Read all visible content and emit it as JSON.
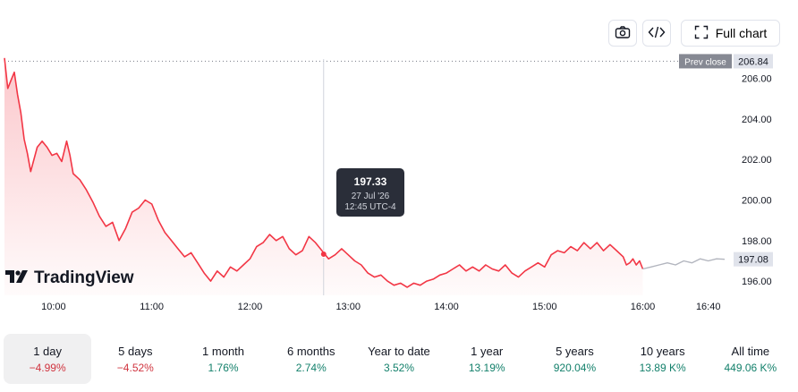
{
  "toolbar": {
    "camera_icon": "camera-icon",
    "embed_icon": "code-icon",
    "full_chart_label": "Full chart"
  },
  "logo_text": "TradingView",
  "tooltip": {
    "value": "197.33",
    "date": "27 Jul '26",
    "time": "12:45 UTC-4"
  },
  "colors": {
    "line": "#f23645",
    "line_after": "#b2b5be",
    "fill": "#f23645",
    "pos": "#13806b",
    "neg": "#d0343f"
  },
  "periods": [
    {
      "label": "1 day",
      "change": "−4.99%",
      "dir": "neg",
      "active": true
    },
    {
      "label": "5 days",
      "change": "−4.52%",
      "dir": "neg",
      "active": false
    },
    {
      "label": "1 month",
      "change": "1.76%",
      "dir": "pos",
      "active": false
    },
    {
      "label": "6 months",
      "change": "2.74%",
      "dir": "pos",
      "active": false
    },
    {
      "label": "Year to date",
      "change": "3.52%",
      "dir": "pos",
      "active": false
    },
    {
      "label": "1 year",
      "change": "13.19%",
      "dir": "pos",
      "active": false
    },
    {
      "label": "5 years",
      "change": "920.04%",
      "dir": "pos",
      "active": false
    },
    {
      "label": "10 years",
      "change": "13.89 K%",
      "dir": "pos",
      "active": false
    },
    {
      "label": "All time",
      "change": "449.06 K%",
      "dir": "pos",
      "active": false
    }
  ],
  "chart_data": {
    "type": "line",
    "xlim": [
      "09:30",
      "16:50"
    ],
    "ylim": [
      195.3,
      207.3
    ],
    "x_ticks": [
      "10:00",
      "11:00",
      "12:00",
      "13:00",
      "14:00",
      "15:00",
      "16:00",
      "16:40"
    ],
    "y_ticks": [
      "196.00",
      "198.00",
      "200.00",
      "202.00",
      "204.00",
      "206.00"
    ],
    "prev_close": {
      "label": "Prev close",
      "value": 206.84,
      "text": "206.84"
    },
    "last_price": {
      "value": 197.08,
      "text": "197.08"
    },
    "crosshair": {
      "x": "12:45",
      "y": 197.33
    },
    "series": [
      {
        "role": "session",
        "points": [
          [
            "09:30",
            207.0
          ],
          [
            "09:32",
            205.5
          ],
          [
            "09:34",
            205.9
          ],
          [
            "09:36",
            206.3
          ],
          [
            "09:38",
            205.2
          ],
          [
            "09:40",
            204.3
          ],
          [
            "09:42",
            203.0
          ],
          [
            "09:44",
            202.3
          ],
          [
            "09:46",
            201.4
          ],
          [
            "09:50",
            202.6
          ],
          [
            "09:53",
            202.9
          ],
          [
            "09:56",
            202.6
          ],
          [
            "09:59",
            202.2
          ],
          [
            "10:02",
            202.3
          ],
          [
            "10:05",
            201.9
          ],
          [
            "10:08",
            202.9
          ],
          [
            "10:10",
            202.2
          ],
          [
            "10:12",
            201.3
          ],
          [
            "10:16",
            201.0
          ],
          [
            "10:20",
            200.5
          ],
          [
            "10:24",
            199.9
          ],
          [
            "10:28",
            199.2
          ],
          [
            "10:32",
            198.7
          ],
          [
            "10:36",
            198.9
          ],
          [
            "10:40",
            198.0
          ],
          [
            "10:44",
            198.6
          ],
          [
            "10:48",
            199.4
          ],
          [
            "10:52",
            199.6
          ],
          [
            "10:56",
            200.0
          ],
          [
            "11:00",
            199.8
          ],
          [
            "11:04",
            199.0
          ],
          [
            "11:08",
            198.4
          ],
          [
            "11:12",
            198.0
          ],
          [
            "11:16",
            197.6
          ],
          [
            "11:20",
            197.2
          ],
          [
            "11:24",
            197.4
          ],
          [
            "11:28",
            196.9
          ],
          [
            "11:32",
            196.4
          ],
          [
            "11:36",
            196.0
          ],
          [
            "11:40",
            196.5
          ],
          [
            "11:44",
            196.2
          ],
          [
            "11:48",
            196.7
          ],
          [
            "11:52",
            196.5
          ],
          [
            "11:56",
            196.8
          ],
          [
            "12:00",
            197.1
          ],
          [
            "12:04",
            197.7
          ],
          [
            "12:08",
            197.9
          ],
          [
            "12:12",
            198.3
          ],
          [
            "12:16",
            198.0
          ],
          [
            "12:20",
            198.2
          ],
          [
            "12:24",
            197.6
          ],
          [
            "12:28",
            197.3
          ],
          [
            "12:32",
            197.5
          ],
          [
            "12:36",
            198.2
          ],
          [
            "12:40",
            197.9
          ],
          [
            "12:44",
            197.5
          ],
          [
            "12:48",
            197.1
          ],
          [
            "12:52",
            197.3
          ],
          [
            "12:56",
            197.6
          ],
          [
            "13:00",
            197.3
          ],
          [
            "13:04",
            197.0
          ],
          [
            "13:08",
            196.8
          ],
          [
            "13:12",
            196.4
          ],
          [
            "13:16",
            196.2
          ],
          [
            "13:20",
            196.3
          ],
          [
            "13:24",
            196.0
          ],
          [
            "13:28",
            195.8
          ],
          [
            "13:32",
            195.9
          ],
          [
            "13:36",
            195.7
          ],
          [
            "13:40",
            195.9
          ],
          [
            "13:44",
            195.8
          ],
          [
            "13:48",
            196.0
          ],
          [
            "13:52",
            196.1
          ],
          [
            "13:56",
            196.3
          ],
          [
            "14:00",
            196.4
          ],
          [
            "14:04",
            196.6
          ],
          [
            "14:08",
            196.8
          ],
          [
            "14:12",
            196.5
          ],
          [
            "14:16",
            196.7
          ],
          [
            "14:20",
            196.5
          ],
          [
            "14:24",
            196.8
          ],
          [
            "14:28",
            196.6
          ],
          [
            "14:32",
            196.5
          ],
          [
            "14:36",
            196.8
          ],
          [
            "14:40",
            196.4
          ],
          [
            "14:44",
            196.2
          ],
          [
            "14:48",
            196.5
          ],
          [
            "14:52",
            196.7
          ],
          [
            "14:56",
            196.9
          ],
          [
            "15:00",
            196.7
          ],
          [
            "15:04",
            197.3
          ],
          [
            "15:08",
            197.5
          ],
          [
            "15:12",
            197.4
          ],
          [
            "15:16",
            197.7
          ],
          [
            "15:20",
            197.5
          ],
          [
            "15:24",
            197.9
          ],
          [
            "15:28",
            197.6
          ],
          [
            "15:32",
            197.9
          ],
          [
            "15:36",
            197.5
          ],
          [
            "15:40",
            197.8
          ],
          [
            "15:44",
            197.5
          ],
          [
            "15:48",
            197.2
          ],
          [
            "15:50",
            196.8
          ],
          [
            "15:52",
            196.9
          ],
          [
            "15:54",
            197.1
          ],
          [
            "15:56",
            196.8
          ],
          [
            "15:58",
            197.0
          ],
          [
            "16:00",
            196.6
          ]
        ]
      },
      {
        "role": "post-market",
        "points": [
          [
            "16:00",
            196.6
          ],
          [
            "16:05",
            196.7
          ],
          [
            "16:10",
            196.8
          ],
          [
            "16:15",
            196.9
          ],
          [
            "16:20",
            196.8
          ],
          [
            "16:25",
            197.0
          ],
          [
            "16:30",
            196.9
          ],
          [
            "16:35",
            197.1
          ],
          [
            "16:40",
            197.0
          ],
          [
            "16:45",
            197.1
          ],
          [
            "16:50",
            197.08
          ]
        ]
      }
    ]
  }
}
